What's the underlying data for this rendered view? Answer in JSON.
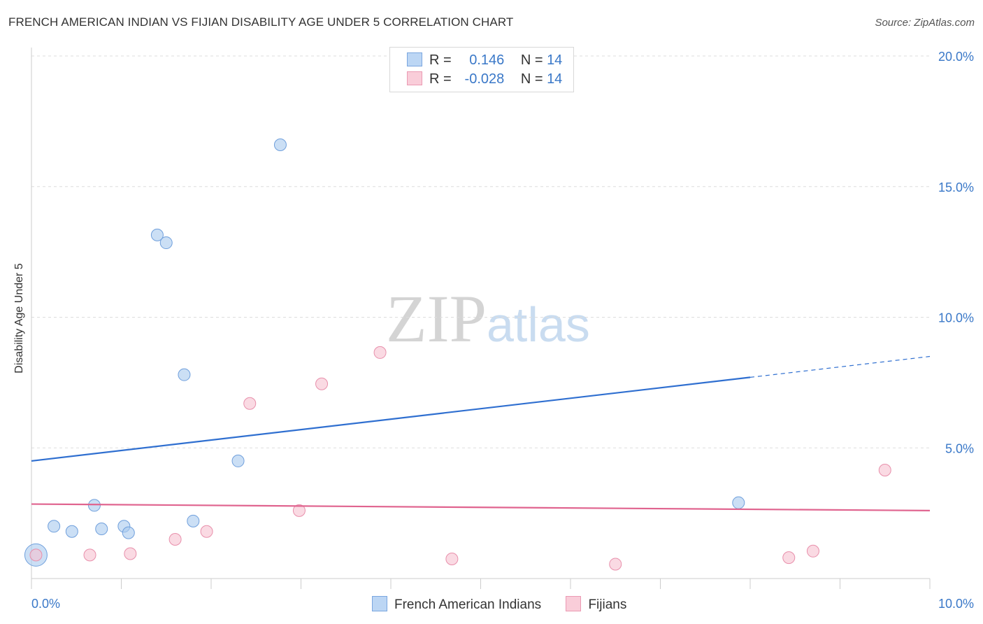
{
  "chart_data": {
    "type": "scatter",
    "title": "FRENCH AMERICAN INDIAN VS FIJIAN DISABILITY AGE UNDER 5 CORRELATION CHART",
    "source": "Source: ZipAtlas.com",
    "xlabel": "",
    "ylabel": "Disability Age Under 5",
    "xlim": [
      0,
      10
    ],
    "ylim": [
      0,
      20
    ],
    "x_tick_labels": [
      "0.0%",
      "10.0%"
    ],
    "y_ticks": [
      5,
      10,
      15,
      20
    ],
    "y_tick_labels": [
      "5.0%",
      "10.0%",
      "15.0%",
      "20.0%"
    ],
    "grid": true,
    "series": [
      {
        "name": "French American Indians",
        "color": "#a9c9ef",
        "stroke": "#6f9fdc",
        "line_color": "#2f6fd0",
        "R": "0.146",
        "N": "14",
        "trend": {
          "x0": 0,
          "y0": 4.5,
          "x1": 8.0,
          "y1": 7.7,
          "dash_x1": 10.0,
          "dash_y1": 8.5
        },
        "points": [
          {
            "x": 0.05,
            "y": 0.9,
            "big": true
          },
          {
            "x": 0.25,
            "y": 2.0
          },
          {
            "x": 0.45,
            "y": 1.8
          },
          {
            "x": 0.7,
            "y": 2.8
          },
          {
            "x": 0.78,
            "y": 1.9
          },
          {
            "x": 1.03,
            "y": 2.0
          },
          {
            "x": 1.08,
            "y": 1.75
          },
          {
            "x": 1.4,
            "y": 13.15
          },
          {
            "x": 1.5,
            "y": 12.85
          },
          {
            "x": 1.7,
            "y": 7.8
          },
          {
            "x": 1.8,
            "y": 2.2
          },
          {
            "x": 2.3,
            "y": 4.5
          },
          {
            "x": 2.77,
            "y": 16.6
          },
          {
            "x": 7.87,
            "y": 2.9
          }
        ]
      },
      {
        "name": "Fijians",
        "color": "#f7c1d1",
        "stroke": "#e88fab",
        "line_color": "#e0648f",
        "R": "-0.028",
        "N": "14",
        "trend": {
          "x0": 0,
          "y0": 2.85,
          "x1": 10.0,
          "y1": 2.6
        },
        "points": [
          {
            "x": 0.05,
            "y": 0.9
          },
          {
            "x": 0.65,
            "y": 0.9
          },
          {
            "x": 1.1,
            "y": 0.95
          },
          {
            "x": 1.6,
            "y": 1.5
          },
          {
            "x": 1.95,
            "y": 1.8
          },
          {
            "x": 2.43,
            "y": 6.7
          },
          {
            "x": 2.98,
            "y": 2.6
          },
          {
            "x": 3.23,
            "y": 7.45
          },
          {
            "x": 3.88,
            "y": 8.65
          },
          {
            "x": 4.68,
            "y": 0.75
          },
          {
            "x": 6.5,
            "y": 0.55
          },
          {
            "x": 8.43,
            "y": 0.8
          },
          {
            "x": 8.7,
            "y": 1.05
          },
          {
            "x": 9.5,
            "y": 4.15
          }
        ]
      }
    ]
  },
  "legend": {
    "r_label": "R =",
    "n_label": "N ="
  },
  "watermark": {
    "zip": "ZIP",
    "atlas": "atlas"
  }
}
